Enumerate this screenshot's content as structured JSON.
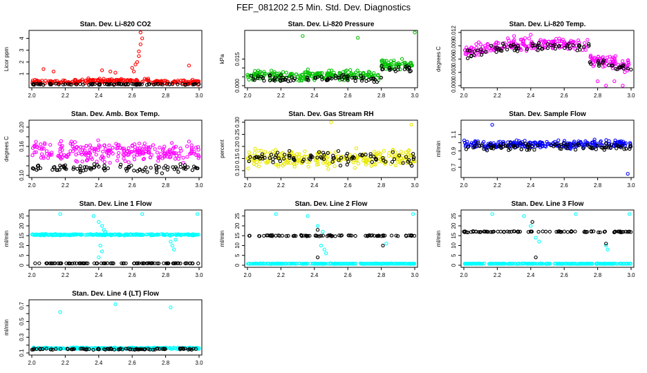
{
  "figure": {
    "title": "FEF_081202  2.5 Min. Std. Dev. Diagnostics"
  },
  "chart_data": [
    {
      "type": "scatter",
      "title": "Stan. Dev. Li-820 CO2",
      "ylabel": "Licor ppm",
      "xlim": [
        2.0,
        3.0
      ],
      "ylim": [
        0,
        4.5
      ],
      "xticks": [
        2.0,
        2.2,
        2.4,
        2.6,
        2.8,
        3.0
      ],
      "yticks": [
        1,
        2,
        3,
        4
      ],
      "colors": [
        "#ff0000",
        "#000000"
      ],
      "series": [
        {
          "name": "red",
          "color": "#ff0000",
          "base": 0.3,
          "noise": 0.25,
          "points": [
            [
              2.42,
              1.3
            ],
            [
              2.47,
              1.2
            ],
            [
              2.5,
              1.1
            ],
            [
              2.6,
              1.5
            ],
            [
              2.62,
              1.8
            ],
            [
              2.63,
              2.0
            ],
            [
              2.64,
              2.5
            ],
            [
              2.64,
              2.9
            ],
            [
              2.65,
              3.5
            ],
            [
              2.66,
              4.0
            ],
            [
              2.65,
              4.5
            ],
            [
              2.61,
              1.2
            ],
            [
              2.94,
              1.7
            ],
            [
              2.07,
              1.4
            ],
            [
              2.13,
              1.2
            ]
          ]
        },
        {
          "name": "black",
          "color": "#000000",
          "base": 0.12,
          "noise": 0.08,
          "points": []
        }
      ]
    },
    {
      "type": "scatter",
      "title": "Stan. Dev. Li-820 Pressure",
      "ylabel": "kPa",
      "xlim": [
        2.0,
        3.0
      ],
      "ylim": [
        0,
        0.03
      ],
      "xticks": [
        2.0,
        2.2,
        2.4,
        2.6,
        2.8,
        3.0
      ],
      "yticks": [
        0,
        0.005,
        0.01,
        0.015
      ],
      "ytick_labels": [
        "0.000",
        "",
        "",
        "0.015"
      ],
      "colors": [
        "#00c000",
        "#000000"
      ],
      "series": [
        {
          "name": "green",
          "color": "#00c000",
          "base": 0.006,
          "noise": 0.004,
          "points": [
            [
              2.33,
              0.028
            ],
            [
              2.66,
              0.027
            ],
            [
              3.0,
              0.03
            ],
            [
              2.82,
              0.013
            ],
            [
              2.86,
              0.012
            ],
            [
              2.9,
              0.012
            ],
            [
              2.95,
              0.011
            ]
          ]
        },
        {
          "name": "black",
          "color": "#000000",
          "base": 0.004,
          "noise": 0.003,
          "points": [
            [
              2.85,
              0.01
            ],
            [
              2.9,
              0.009
            ],
            [
              2.97,
              0.008
            ]
          ]
        }
      ]
    },
    {
      "type": "scatter",
      "title": "Stan. Dev. Li-820 Temp.",
      "ylabel": "degrees C",
      "xlim": [
        2.0,
        3.0
      ],
      "ylim": [
        0,
        0.012
      ],
      "xticks": [
        2.0,
        2.2,
        2.4,
        2.6,
        2.8,
        3.0
      ],
      "yticks": [
        0,
        0.003,
        0.006,
        0.009,
        0.012
      ],
      "ytick_labels": [
        "0.000",
        "0.003",
        "0.006",
        "0.009",
        "0.012"
      ],
      "colors": [
        "#ff00ff",
        "#000000"
      ],
      "series": [
        {
          "name": "magenta",
          "color": "#ff00ff",
          "base": 0.0075,
          "noise": 0.002,
          "points": [
            [
              2.8,
              0.001
            ],
            [
              2.85,
              0.0
            ],
            [
              2.9,
              0.001
            ],
            [
              2.95,
              0.0
            ],
            [
              2.4,
              0.0115
            ],
            [
              2.3,
              0.0112
            ]
          ]
        },
        {
          "name": "black",
          "color": "#000000",
          "base": 0.007,
          "noise": 0.0015,
          "points": []
        }
      ]
    },
    {
      "type": "scatter",
      "title": "Stan. Dev. Amb. Box Temp.",
      "ylabel": "degrees C",
      "xlim": [
        2.0,
        3.0
      ],
      "ylim": [
        0.1,
        0.21
      ],
      "xticks": [
        2.0,
        2.2,
        2.4,
        2.6,
        2.8,
        3.0
      ],
      "yticks": [
        0.1,
        0.12,
        0.14,
        0.16,
        0.18,
        0.2
      ],
      "ytick_labels": [
        "0.10",
        "",
        "",
        "0.16",
        "",
        "0.20"
      ],
      "colors": [
        "#ff00ff",
        "#000000"
      ],
      "series": [
        {
          "name": "magenta",
          "color": "#ff00ff",
          "base": 0.15,
          "noise": 0.03,
          "points": []
        },
        {
          "name": "black",
          "color": "#000000",
          "base": 0.115,
          "noise": 0.012,
          "points": []
        }
      ]
    },
    {
      "type": "scatter",
      "title": "Stan. Dev. Gas Stream RH",
      "ylabel": "percent",
      "xlim": [
        2.0,
        3.0
      ],
      "ylim": [
        0.08,
        0.3
      ],
      "xticks": [
        2.0,
        2.2,
        2.4,
        2.6,
        2.8,
        3.0
      ],
      "yticks": [
        0.1,
        0.15,
        0.2,
        0.25,
        0.3
      ],
      "ytick_labels": [
        "0.10",
        "0.15",
        "0.20",
        "0.25",
        "0.30"
      ],
      "colors": [
        "#ffff00",
        "#000000"
      ],
      "series": [
        {
          "name": "yellow",
          "color": "#e8e800",
          "base": 0.15,
          "noise": 0.05,
          "points": [
            [
              2.5,
              0.3
            ],
            [
              2.98,
              0.29
            ]
          ]
        },
        {
          "name": "black",
          "color": "#000000",
          "base": 0.15,
          "noise": 0.04,
          "points": []
        }
      ]
    },
    {
      "type": "scatter",
      "title": "Stan. Dev. Sample Flow",
      "ylabel": "ml/min",
      "xlim": [
        2.0,
        3.0
      ],
      "ylim": [
        0.6,
        1.25
      ],
      "xticks": [
        2.0,
        2.2,
        2.4,
        2.6,
        2.8,
        3.0
      ],
      "yticks": [
        0.7,
        0.8,
        0.9,
        1.0,
        1.1
      ],
      "ytick_labels": [
        "0.7",
        "",
        "0.9",
        "",
        "1.1"
      ],
      "colors": [
        "#0000ff",
        "#000000"
      ],
      "series": [
        {
          "name": "blue",
          "color": "#0000ff",
          "base": 0.98,
          "noise": 0.07,
          "points": [
            [
              2.17,
              1.22
            ],
            [
              2.98,
              0.62
            ]
          ]
        },
        {
          "name": "black",
          "color": "#000000",
          "base": 0.95,
          "noise": 0.06,
          "points": []
        }
      ]
    },
    {
      "type": "scatter",
      "title": "Stan. Dev. Line 1 Flow",
      "ylabel": "ml/min",
      "xlim": [
        2.0,
        3.0
      ],
      "ylim": [
        0,
        27
      ],
      "xticks": [
        2.0,
        2.2,
        2.4,
        2.6,
        2.8,
        3.0
      ],
      "yticks": [
        0,
        5,
        10,
        15,
        20,
        25
      ],
      "colors": [
        "#00ffff",
        "#000000"
      ],
      "series": [
        {
          "name": "cyan",
          "color": "#00ffff",
          "base": 15.5,
          "noise": 0.5,
          "points": [
            [
              2.17,
              26
            ],
            [
              2.37,
              25
            ],
            [
              2.4,
              22
            ],
            [
              2.42,
              20
            ],
            [
              2.43,
              18
            ],
            [
              2.44,
              17
            ],
            [
              2.41,
              10
            ],
            [
              2.42,
              7
            ],
            [
              2.4,
              4
            ],
            [
              2.66,
              26
            ],
            [
              2.83,
              12
            ],
            [
              2.84,
              10
            ],
            [
              2.85,
              8
            ],
            [
              2.86,
              13
            ],
            [
              2.99,
              26
            ]
          ]
        },
        {
          "name": "black",
          "color": "#000000",
          "base": 1.0,
          "noise": 0.1,
          "points": []
        }
      ]
    },
    {
      "type": "scatter",
      "title": "Stan. Dev. Line 2 Flow",
      "ylabel": "ml/min",
      "xlim": [
        2.0,
        3.0
      ],
      "ylim": [
        0,
        27
      ],
      "xticks": [
        2.0,
        2.2,
        2.4,
        2.6,
        2.8,
        3.0
      ],
      "yticks": [
        0,
        5,
        10,
        15,
        20,
        25
      ],
      "colors": [
        "#00ffff",
        "#000000"
      ],
      "series": [
        {
          "name": "cyan",
          "color": "#00ffff",
          "base": 0.8,
          "noise": 0.2,
          "points": [
            [
              2.17,
              26
            ],
            [
              2.36,
              25
            ],
            [
              2.42,
              20
            ],
            [
              2.44,
              10
            ],
            [
              2.46,
              8
            ],
            [
              2.47,
              6
            ],
            [
              2.45,
              17
            ],
            [
              2.83,
              11
            ],
            [
              2.99,
              26
            ]
          ]
        },
        {
          "name": "black",
          "color": "#000000",
          "base": 15.0,
          "noise": 0.4,
          "points": [
            [
              2.42,
              4
            ],
            [
              2.42,
              18
            ],
            [
              2.81,
              10
            ]
          ]
        }
      ]
    },
    {
      "type": "scatter",
      "title": "Stan. Dev. Line 3 Flow",
      "ylabel": "ml/min",
      "xlim": [
        2.0,
        3.0
      ],
      "ylim": [
        0,
        27
      ],
      "xticks": [
        2.0,
        2.2,
        2.4,
        2.6,
        2.8,
        3.0
      ],
      "yticks": [
        0,
        5,
        10,
        15,
        20,
        25
      ],
      "colors": [
        "#00ffff",
        "#000000"
      ],
      "series": [
        {
          "name": "cyan",
          "color": "#00ffff",
          "base": 0.8,
          "noise": 0.2,
          "points": [
            [
              2.17,
              26
            ],
            [
              2.36,
              25
            ],
            [
              2.4,
              20
            ],
            [
              2.43,
              14
            ],
            [
              2.45,
              12
            ],
            [
              2.67,
              26
            ],
            [
              2.85,
              10
            ],
            [
              2.86,
              8
            ],
            [
              2.99,
              26
            ]
          ]
        },
        {
          "name": "black",
          "color": "#000000",
          "base": 17.0,
          "noise": 0.4,
          "points": [
            [
              2.43,
              4
            ],
            [
              2.41,
              22
            ],
            [
              2.85,
              11
            ]
          ]
        }
      ]
    },
    {
      "type": "scatter",
      "title": "Stan. Dev. Line 4 (LT) Flow",
      "ylabel": "ml/min",
      "xlim": [
        2.0,
        3.0
      ],
      "ylim": [
        0.1,
        0.75
      ],
      "xticks": [
        2.0,
        2.2,
        2.4,
        2.6,
        2.8,
        3.0
      ],
      "yticks": [
        0.1,
        0.2,
        0.3,
        0.4,
        0.5,
        0.6,
        0.7
      ],
      "ytick_labels": [
        "0.1",
        "",
        "0.3",
        "",
        "0.5",
        "",
        "0.7"
      ],
      "colors": [
        "#00ffff",
        "#000000"
      ],
      "series": [
        {
          "name": "cyan",
          "color": "#00ffff",
          "base": 0.16,
          "noise": 0.015,
          "points": [
            [
              2.17,
              0.62
            ],
            [
              2.5,
              0.72
            ],
            [
              2.83,
              0.68
            ]
          ]
        },
        {
          "name": "black",
          "color": "#000000",
          "base": 0.15,
          "noise": 0.015,
          "points": []
        }
      ]
    }
  ]
}
